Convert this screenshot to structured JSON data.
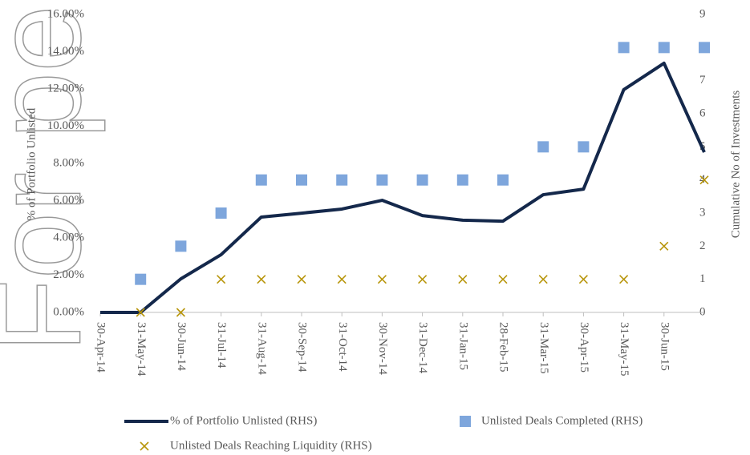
{
  "chart_data": {
    "type": "line",
    "watermark": "For personal use only",
    "ylabel": "% of Portfolio Unlisted",
    "y2label": "Cumulative No of Investments",
    "categories": [
      "30-Apr-14",
      "31-May-14",
      "30-Jun-14",
      "31-Jul-14",
      "31-Aug-14",
      "30-Sep-14",
      "31-Oct-14",
      "30-Nov-14",
      "31-Dec-14",
      "31-Jan-15",
      "28-Feb-15",
      "31-Mar-15",
      "30-Apr-15",
      "31-May-15",
      "30-Jun-15",
      null
    ],
    "ylim": [
      0,
      16
    ],
    "yticks": [
      {
        "value": 0,
        "label": "0.00%"
      },
      {
        "value": 2,
        "label": "2.00%"
      },
      {
        "value": 4,
        "label": "4.00%"
      },
      {
        "value": 6,
        "label": "6.00%"
      },
      {
        "value": 8,
        "label": "8.00%"
      },
      {
        "value": 10,
        "label": "10.00%"
      },
      {
        "value": 12,
        "label": "12.00%"
      },
      {
        "value": 14,
        "label": "14.00%"
      },
      {
        "value": 16,
        "label": "16.00%"
      }
    ],
    "y2lim": [
      0,
      9
    ],
    "y2ticks": [
      0,
      1,
      2,
      3,
      4,
      5,
      6,
      7,
      8,
      9
    ],
    "series": [
      {
        "name": "% of Portfolio Unlisted (RHS)",
        "type": "line",
        "color": "#14284b",
        "values": [
          0,
          0,
          1.8,
          3.1,
          5.12,
          5.33,
          5.55,
          6.02,
          5.2,
          4.95,
          4.9,
          6.32,
          6.62,
          11.96,
          13.38,
          8.6
        ]
      },
      {
        "name": "Unlisted Deals Completed (RHS)",
        "type": "scatter",
        "marker": "square",
        "axis": "y2",
        "color": "#7ea6dc",
        "values": [
          null,
          1,
          2,
          3,
          4,
          4,
          4,
          4,
          4,
          4,
          4,
          5,
          5,
          8,
          8,
          8
        ]
      },
      {
        "name": "Unlisted Deals Reaching Liquidity (RHS)",
        "type": "scatter",
        "marker": "x",
        "axis": "y2",
        "color": "#b8960c",
        "values": [
          null,
          0,
          0,
          1,
          1,
          1,
          1,
          1,
          1,
          1,
          1,
          1,
          1,
          1,
          2,
          4
        ]
      }
    ]
  }
}
